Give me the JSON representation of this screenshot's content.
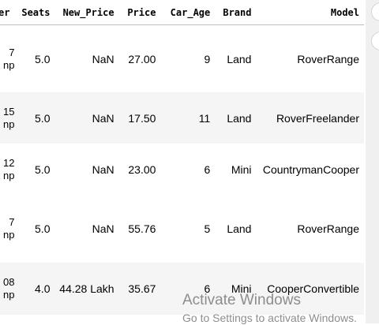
{
  "table": {
    "columns": [
      "er",
      "Seats",
      "New_Price",
      "Price",
      "Car_Age",
      "Brand",
      "Model"
    ],
    "rows": [
      {
        "partial": [
          "7",
          "np"
        ],
        "seats": "5.0",
        "new_price": "NaN",
        "price": "27.00",
        "car_age": "9",
        "brand": "Land",
        "model": "RoverRange"
      },
      {
        "partial": [
          "15",
          "np"
        ],
        "seats": "5.0",
        "new_price": "NaN",
        "price": "17.50",
        "car_age": "11",
        "brand": "Land",
        "model": "RoverFreelander"
      },
      {
        "partial": [
          "12",
          "np"
        ],
        "seats": "5.0",
        "new_price": "NaN",
        "price": "23.00",
        "car_age": "6",
        "brand": "Mini",
        "model": "CountrymanCooper"
      },
      {
        "partial": [
          "7",
          "np"
        ],
        "seats": "5.0",
        "new_price": "NaN",
        "price": "55.76",
        "car_age": "5",
        "brand": "Land",
        "model": "RoverRange"
      },
      {
        "partial": [
          "08",
          "np"
        ],
        "seats": "4.0",
        "new_price": "44.28 Lakh",
        "price": "35.67",
        "car_age": "6",
        "brand": "Mini",
        "model": "CooperConvertible"
      }
    ]
  },
  "watermark": {
    "title": "Activate Windows",
    "subtitle": "Go to Settings to activate Windows."
  },
  "colors": {
    "row_alt_background": "#f5f5f5",
    "header_border": "#bdbdbd",
    "watermark_text": "#8d8d8d"
  }
}
